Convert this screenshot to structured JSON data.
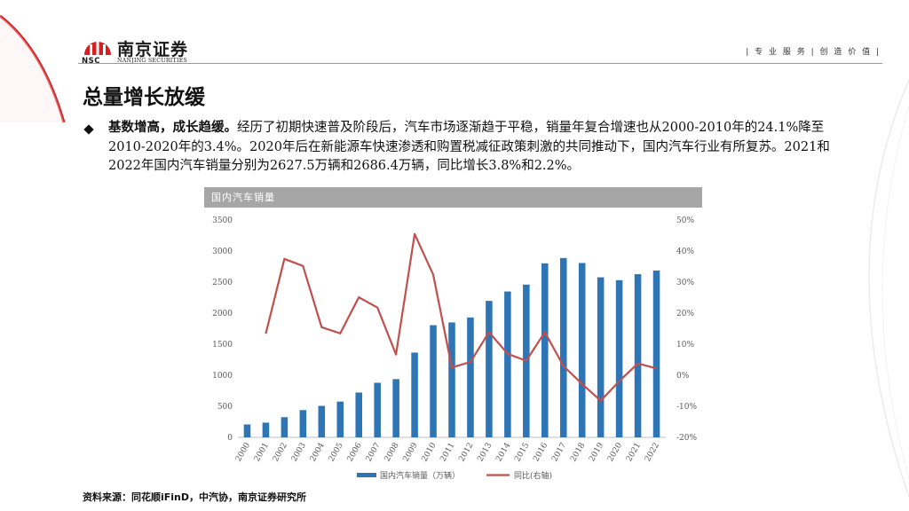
{
  "brand": {
    "name_cn": "南京证券",
    "abbr": "NSC",
    "name_en": "NANJING SECURITIES",
    "motto": "| 专 业 服 务 | 创 造 价 值 |",
    "colors": {
      "red": "#d71e22",
      "bar": "#2e75b6",
      "line": "#c0504d"
    }
  },
  "title": "总量增长放缓",
  "bullet": {
    "lead": "基数增高，成长趋缓。",
    "text": "经历了初期快速普及阶段后，汽车市场逐渐趋于平稳，销量年复合增速也从2000-2010年的24.1%降至2010-2020年的3.4%。2020年后在新能源车快速渗透和购置税减征政策刺激的共同推动下，国内汽车行业有所复苏。2021和2022年国内汽车销量分别为2627.5万辆和2686.4万辆，同比增长3.8%和2.2%。"
  },
  "chart_data": {
    "type": "bar",
    "title": "国内汽车销量",
    "categories": [
      "2000",
      "2001",
      "2002",
      "2003",
      "2004",
      "2005",
      "2006",
      "2007",
      "2008",
      "2009",
      "2010",
      "2011",
      "2012",
      "2013",
      "2014",
      "2015",
      "2016",
      "2017",
      "2018",
      "2019",
      "2020",
      "2021",
      "2022"
    ],
    "series": [
      {
        "name": "国内汽车销量（万辆）",
        "type": "bar",
        "axis": "left",
        "values": [
          208,
          237,
          325,
          439,
          507,
          576,
          722,
          879,
          938,
          1365,
          1806,
          1851,
          1931,
          2198,
          2349,
          2460,
          2803,
          2888,
          2808,
          2577,
          2531,
          2627.5,
          2686.4
        ]
      },
      {
        "name": "同比(右轴)",
        "type": "line",
        "axis": "right",
        "values": [
          null,
          13.4,
          37.5,
          35.2,
          15.5,
          13.5,
          25.1,
          21.8,
          6.7,
          45.5,
          32.4,
          2.5,
          4.3,
          13.9,
          6.9,
          4.7,
          13.9,
          3.0,
          -2.8,
          -8.2,
          -1.9,
          3.8,
          2.2
        ]
      }
    ],
    "yaxis_left": {
      "ticks": [
        "0",
        "500",
        "1000",
        "1500",
        "2000",
        "2500",
        "3000",
        "3500"
      ],
      "range": [
        0,
        3500
      ]
    },
    "yaxis_right": {
      "ticks": [
        "-20%",
        "-10%",
        "0%",
        "10%",
        "20%",
        "30%",
        "40%",
        "50%"
      ],
      "range": [
        -20,
        50
      ]
    },
    "legend_position": "bottom",
    "grid": false
  },
  "source": "资料来源：同花顺iFinD，中汽协，南京证券研究所"
}
